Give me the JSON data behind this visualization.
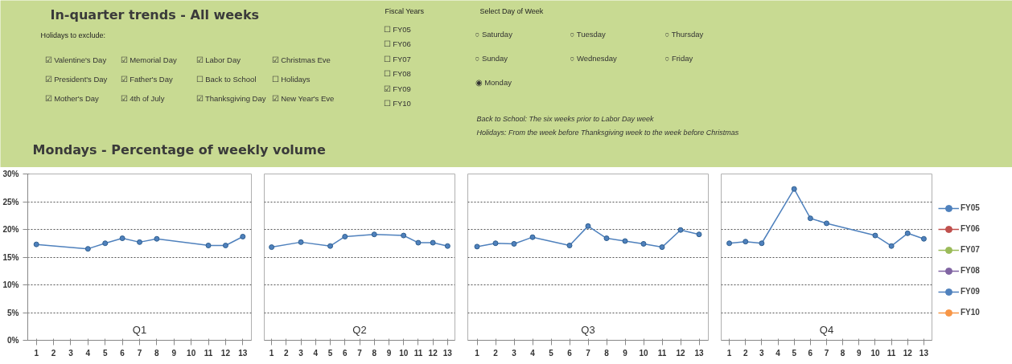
{
  "chart_data": [
    {
      "type": "other",
      "title": "In-quarter trends - All weeks"
    },
    {
      "type": "other",
      "title": "Holidays to exclude:",
      "annotations": [
        "☑ Valentine's Day",
        "☑ Memorial Day",
        "☑ Labor Day",
        "☑ Christmas Eve",
        "☑ President's Day",
        "☑ Father's Day",
        "☐ Back to School",
        "☐ Holidays",
        "☑ Mother's Day",
        "☑ 4th of July",
        "☑ Thanksgiving Day",
        "☑ New Year's Eve"
      ]
    },
    {
      "type": "other",
      "title": "Fiscal Years",
      "annotations": [
        "☐ FY05",
        "☐ FY06",
        "☐ FY07",
        "☐ FY08",
        "☑ FY09",
        "☐ FY10"
      ]
    },
    {
      "type": "other",
      "title": "Select Day of Week",
      "annotations": [
        "○ Saturday",
        "○ Tuesday",
        "○ Thursday",
        "○ Sunday",
        "○ Wednesday",
        "○ Friday",
        "◉ Monday"
      ]
    },
    {
      "type": "other",
      "annotations": [
        "Back to School: The six weeks prior to Labor Day week",
        "Holidays: From the week before Thanksgiving week to the week before Christmas"
      ]
    },
    {
      "type": "other",
      "title": "Mondays - Percentage of weekly volume"
    },
    {
      "type": "line",
      "annotations": [
        "Q1"
      ],
      "xlim": [
        0.5,
        13.5
      ],
      "xticks": [
        1,
        2,
        3,
        4,
        5,
        6,
        7,
        8,
        9,
        10,
        11,
        12,
        13
      ],
      "ylim": [
        0,
        30
      ],
      "yticks": [
        {
          "value": 0,
          "label": "0%"
        },
        {
          "value": 5,
          "label": "5%"
        },
        {
          "value": 10,
          "label": "10%"
        },
        {
          "value": 15,
          "label": "15%"
        },
        {
          "value": 20,
          "label": "20%"
        },
        {
          "value": 25,
          "label": "25%"
        },
        {
          "value": 30,
          "label": "30%"
        }
      ],
      "grid": "y",
      "marker": "circle",
      "legend": false,
      "series": [
        {
          "color": "#4f81bd",
          "x": [
            1,
            4,
            5,
            6,
            7,
            8,
            11,
            12,
            13
          ],
          "values": [
            17.3,
            16.5,
            17.5,
            18.4,
            17.7,
            18.3,
            17.1,
            17.1,
            18.7
          ]
        }
      ]
    },
    {
      "type": "line",
      "annotations": [
        "Q2"
      ],
      "xlim": [
        0.5,
        13.5
      ],
      "xticks": [
        1,
        2,
        3,
        4,
        5,
        6,
        7,
        8,
        9,
        10,
        11,
        12,
        13
      ],
      "ylim": [
        0,
        30
      ],
      "yticks": [
        0,
        5,
        10,
        15,
        20,
        25,
        30
      ],
      "grid": "y",
      "marker": "circle",
      "legend": false,
      "tick_labels": "x",
      "series": [
        {
          "color": "#4f81bd",
          "x": [
            1,
            3,
            5,
            6,
            8,
            10,
            11,
            12,
            13
          ],
          "values": [
            16.8,
            17.7,
            17.0,
            18.7,
            19.1,
            18.9,
            17.6,
            17.6,
            17.0
          ]
        }
      ]
    },
    {
      "type": "line",
      "annotations": [
        "Q3"
      ],
      "xlim": [
        0.5,
        13.5
      ],
      "xticks": [
        1,
        2,
        3,
        4,
        5,
        6,
        7,
        8,
        9,
        10,
        11,
        12,
        13
      ],
      "ylim": [
        0,
        30
      ],
      "yticks": [
        0,
        5,
        10,
        15,
        20,
        25,
        30
      ],
      "grid": "y",
      "marker": "circle",
      "legend": false,
      "tick_labels": "x",
      "series": [
        {
          "color": "#4f81bd",
          "x": [
            1,
            2,
            3,
            4,
            6,
            7,
            8,
            9,
            10,
            11,
            12,
            13
          ],
          "values": [
            16.9,
            17.5,
            17.4,
            18.6,
            17.1,
            20.6,
            18.4,
            17.9,
            17.4,
            16.8,
            19.9,
            19.1
          ]
        }
      ]
    },
    {
      "type": "line",
      "annotations": [
        "Q4"
      ],
      "xlim": [
        0.5,
        13.5
      ],
      "xticks": [
        1,
        2,
        3,
        4,
        5,
        6,
        7,
        8,
        9,
        10,
        11,
        12,
        13
      ],
      "ylim": [
        0,
        30
      ],
      "yticks": [
        0,
        5,
        10,
        15,
        20,
        25,
        30
      ],
      "grid": "y",
      "marker": "circle",
      "legend": "right",
      "tick_labels": "x",
      "series": [
        {
          "name": "FY05",
          "color": "#4f81bd",
          "values": [
            null,
            null,
            null,
            null,
            null,
            null,
            null,
            null,
            null,
            null,
            null,
            null,
            null
          ]
        },
        {
          "name": "FY06",
          "color": "#c0504d",
          "values": [
            null,
            null,
            null,
            null,
            null,
            null,
            null,
            null,
            null,
            null,
            null,
            null,
            null
          ]
        },
        {
          "name": "FY07",
          "color": "#9bbb59",
          "values": [
            null,
            null,
            null,
            null,
            null,
            null,
            null,
            null,
            null,
            null,
            null,
            null,
            null
          ]
        },
        {
          "name": "FY08",
          "color": "#8064a2",
          "values": [
            null,
            null,
            null,
            null,
            null,
            null,
            null,
            null,
            null,
            null,
            null,
            null,
            null
          ]
        },
        {
          "name": "FY09",
          "color": "#4f81bd",
          "x": [
            1,
            2,
            3,
            5,
            6,
            7,
            10,
            11,
            12,
            13
          ],
          "values": [
            17.5,
            17.8,
            17.5,
            27.3,
            22.0,
            21.1,
            18.9,
            17.0,
            19.3,
            18.3
          ]
        },
        {
          "name": "FY10",
          "color": "#f79646",
          "values": [
            null,
            null,
            null,
            null,
            null,
            null,
            null,
            null,
            null,
            null,
            null,
            null,
            null
          ]
        }
      ]
    }
  ]
}
